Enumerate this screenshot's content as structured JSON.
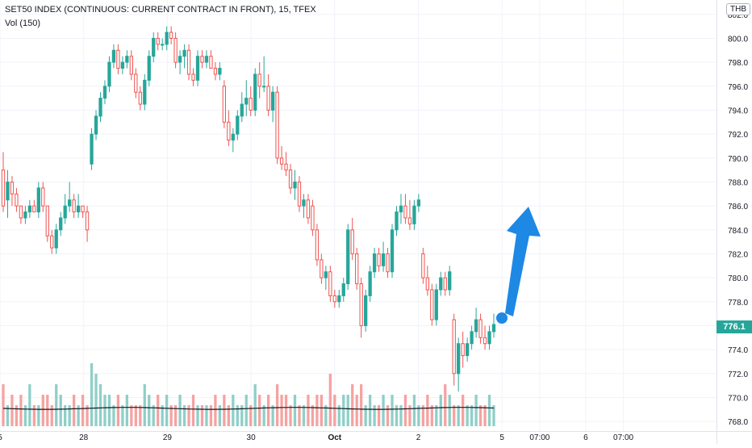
{
  "title": "SET50 INDEX (CONTINUOUS: CURRENT CONTRACT IN FRONT), 15, TFEX",
  "volume_label": "Vol (150)",
  "currency": "THB",
  "last_price_label": "776.1",
  "colors": {
    "up": "#26a69a",
    "down": "#ef5350",
    "vol_up": "#8fcfc8",
    "vol_down": "#f5a3a1",
    "vol_ma": "#131722",
    "arrow": "#1e88e5",
    "grid": "#f0f3fa",
    "axis_text": "#131722"
  },
  "annotation": {
    "type": "arrow-up",
    "color": "#1e88e5",
    "from": [
      5.1,
      777.0
    ],
    "to": [
      5.35,
      786.5
    ]
  },
  "chart_data": {
    "type": "candlestick",
    "title": "SET50 INDEX (CONTINUOUS: CURRENT CONTRACT IN FRONT), 15, TFEX",
    "interval": "15",
    "x_tick_labels": [
      {
        "label": "5",
        "x": 0
      },
      {
        "label": "28",
        "x": 1
      },
      {
        "label": "29",
        "x": 2
      },
      {
        "label": "30",
        "x": 3
      },
      {
        "label": "Oct",
        "x": 4
      },
      {
        "label": "2",
        "x": 5
      },
      {
        "label": "5",
        "x": 6
      },
      {
        "label": "07:00",
        "x": 6.45
      },
      {
        "label": "6",
        "x": 7
      },
      {
        "label": "07:00",
        "x": 7.45
      }
    ],
    "xlim": [
      0,
      8.5
    ],
    "ylim": [
      767.2,
      803.2
    ],
    "y_ticks": [
      768,
      770,
      772,
      774,
      776,
      778,
      780,
      782,
      784,
      786,
      788,
      790,
      792,
      794,
      796,
      798,
      800,
      802
    ],
    "last_price": 776.1,
    "candles": [
      [
        789,
        790.5,
        785.5,
        786
      ],
      [
        786.5,
        789,
        785,
        788
      ],
      [
        788,
        788.5,
        786,
        787
      ],
      [
        787,
        787.5,
        785.5,
        786
      ],
      [
        786,
        786,
        784.5,
        785
      ],
      [
        785,
        786,
        784.5,
        785.5
      ],
      [
        785.5,
        786.5,
        785,
        786
      ],
      [
        786,
        786.5,
        785.5,
        785.5
      ],
      [
        785.5,
        788,
        785,
        787.5
      ],
      [
        787.5,
        788,
        785.5,
        786
      ],
      [
        786,
        786,
        783,
        783.5
      ],
      [
        783.5,
        784,
        782,
        782.5
      ],
      [
        782.5,
        784.5,
        782,
        784
      ],
      [
        784,
        785.5,
        783.5,
        785
      ],
      [
        785,
        787,
        784.5,
        786
      ],
      [
        786,
        788,
        785.5,
        786.5
      ],
      [
        786.5,
        787,
        785,
        785.5
      ],
      [
        785.5,
        787,
        785,
        786
      ],
      [
        786,
        786,
        785,
        785.5
      ],
      [
        785.5,
        786,
        783,
        784
      ],
      [
        789.5,
        792.5,
        789,
        792
      ],
      [
        792,
        794,
        791.5,
        793.5
      ],
      [
        793.5,
        795.5,
        793,
        795
      ],
      [
        795,
        796.5,
        794.5,
        796
      ],
      [
        796,
        798.5,
        795.5,
        798
      ],
      [
        798,
        799.5,
        797.5,
        799
      ],
      [
        799,
        799.5,
        797,
        797.5
      ],
      [
        797.5,
        798.5,
        797,
        798
      ],
      [
        798,
        799,
        797.5,
        798.5
      ],
      [
        798.5,
        799,
        796.5,
        797
      ],
      [
        797,
        797.5,
        795,
        795.5
      ],
      [
        795.5,
        796,
        794,
        794.5
      ],
      [
        794.5,
        797,
        794,
        796.5
      ],
      [
        796.5,
        799,
        796,
        798.5
      ],
      [
        798.5,
        800.5,
        798,
        800
      ],
      [
        800,
        800.5,
        799,
        799.5
      ],
      [
        799.5,
        800,
        799,
        799.5
      ],
      [
        799.5,
        801,
        799,
        800.5
      ],
      [
        800.5,
        801,
        799.5,
        800
      ],
      [
        800,
        800.5,
        797.5,
        798
      ],
      [
        798,
        799,
        797,
        798.5
      ],
      [
        798.5,
        799.5,
        797.5,
        799
      ],
      [
        799,
        799.5,
        796.5,
        797
      ],
      [
        797,
        797.5,
        796,
        796.5
      ],
      [
        796.5,
        799,
        796,
        798.5
      ],
      [
        798.5,
        799,
        797.5,
        798
      ],
      [
        798,
        799,
        797.5,
        798.5
      ],
      [
        798.5,
        799,
        797.5,
        797.5
      ],
      [
        797.5,
        798,
        796.5,
        797
      ],
      [
        797,
        798,
        796.5,
        797.5
      ],
      [
        796,
        796.5,
        792.5,
        793
      ],
      [
        793,
        794,
        791,
        791.5
      ],
      [
        791.5,
        792.5,
        790.5,
        792
      ],
      [
        792,
        794,
        791.5,
        793.5
      ],
      [
        793.5,
        795.5,
        793,
        794.5
      ],
      [
        794.5,
        796.5,
        793.5,
        795
      ],
      [
        795,
        796,
        793.5,
        794
      ],
      [
        794,
        797.5,
        793.5,
        797
      ],
      [
        797,
        798,
        795,
        796
      ],
      [
        796,
        798.5,
        795.5,
        796
      ],
      [
        796,
        797,
        793.5,
        794
      ],
      [
        794,
        796,
        793,
        795.5
      ],
      [
        795.5,
        796,
        789.5,
        790
      ],
      [
        790,
        791,
        789,
        789.5
      ],
      [
        789.5,
        790.5,
        788.5,
        789
      ],
      [
        789,
        789.5,
        787,
        787.5
      ],
      [
        787.5,
        789,
        786.5,
        788
      ],
      [
        788,
        788.5,
        785.5,
        786
      ],
      [
        786,
        787,
        785,
        786.5
      ],
      [
        786.5,
        787,
        784.5,
        785
      ],
      [
        786,
        786.5,
        783.5,
        784
      ],
      [
        784,
        784.5,
        781,
        781.5
      ],
      [
        781.5,
        782,
        779.5,
        780
      ],
      [
        780,
        781,
        779,
        780.5
      ],
      [
        780.5,
        781,
        778,
        778.5
      ],
      [
        778.5,
        779,
        777.5,
        778
      ],
      [
        778,
        779,
        777.5,
        778.5
      ],
      [
        778.5,
        780,
        778,
        779.5
      ],
      [
        779.5,
        784.5,
        779,
        784
      ],
      [
        784,
        785,
        781.5,
        782
      ],
      [
        782,
        782.5,
        779,
        779.5
      ],
      [
        779.5,
        780,
        775,
        776
      ],
      [
        776,
        779,
        775.5,
        778.5
      ],
      [
        778.5,
        781,
        778,
        780.5
      ],
      [
        780.5,
        782.5,
        780,
        782
      ],
      [
        782,
        782.5,
        780.5,
        781
      ],
      [
        781,
        783,
        780.5,
        782
      ],
      [
        782,
        782.5,
        780,
        780.5
      ],
      [
        780.5,
        784.5,
        780,
        784
      ],
      [
        784,
        786,
        783.5,
        785.5
      ],
      [
        785.5,
        787,
        784.5,
        786
      ],
      [
        786,
        787,
        784.5,
        785
      ],
      [
        785,
        786.5,
        784,
        784.5
      ],
      [
        784.5,
        786.5,
        784,
        786
      ],
      [
        786,
        787,
        785.5,
        786.5
      ],
      [
        782,
        782.5,
        779.5,
        780
      ],
      [
        780,
        781,
        778.5,
        779
      ],
      [
        779,
        779.5,
        776,
        776.5
      ],
      [
        776.5,
        779.5,
        776,
        779
      ],
      [
        779,
        780.5,
        778.5,
        780
      ],
      [
        780,
        780.5,
        778.5,
        779
      ],
      [
        779,
        781,
        778.5,
        780.5
      ],
      [
        776.5,
        777,
        771,
        772
      ],
      [
        772,
        775,
        770.5,
        774.5
      ],
      [
        774.5,
        775.5,
        772.5,
        773.5
      ],
      [
        773.5,
        775,
        773,
        774.5
      ],
      [
        774.5,
        776,
        774,
        775.5
      ],
      [
        775.5,
        777.5,
        775,
        776.5
      ],
      [
        776.5,
        777,
        774.5,
        775
      ],
      [
        775,
        776,
        774,
        774.5
      ],
      [
        774.5,
        776,
        774,
        775.5
      ],
      [
        775.5,
        777,
        775,
        776.1
      ]
    ],
    "volume": {
      "label": "Vol (150)",
      "ma_value": 1.7,
      "bars": [
        4,
        2,
        3,
        2,
        3,
        2,
        4,
        2,
        2,
        3,
        3,
        2,
        4,
        3,
        2,
        2,
        3,
        2,
        3,
        2,
        6,
        5,
        4,
        3,
        3,
        2,
        3,
        2,
        3,
        2,
        2,
        2,
        4,
        3,
        2,
        3,
        2,
        3,
        2,
        2,
        3,
        2,
        2,
        3,
        2,
        2,
        2,
        2,
        3,
        2,
        3,
        2,
        3,
        2,
        2,
        3,
        2,
        4,
        3,
        2,
        3,
        2,
        4,
        3,
        3,
        2,
        3,
        2,
        2,
        3,
        2,
        3,
        3,
        2,
        5,
        3,
        2,
        3,
        3,
        4,
        3,
        4,
        2,
        3,
        2,
        2,
        3,
        2,
        3,
        2,
        2,
        3,
        2,
        3,
        2,
        2,
        3,
        2,
        2,
        3,
        4,
        3,
        2,
        2,
        3,
        2,
        2,
        3,
        2,
        2,
        3,
        2,
        2,
        3,
        2,
        2,
        3
      ]
    }
  }
}
